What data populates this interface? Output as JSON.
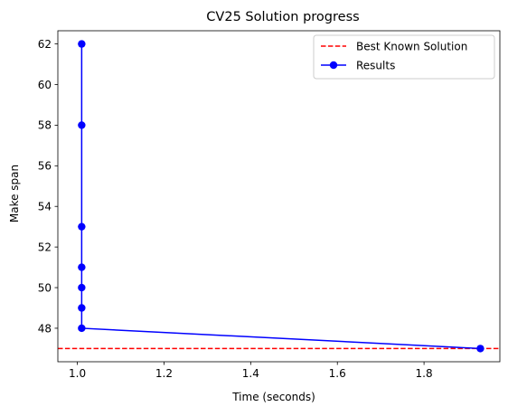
{
  "chart_data": {
    "type": "line",
    "title": "CV25 Solution progress",
    "xlabel": "Time (seconds)",
    "ylabel": "Make span",
    "xlim": [
      0.955,
      1.975
    ],
    "ylim": [
      46.35,
      62.65
    ],
    "xticks": [
      1.0,
      1.2,
      1.4,
      1.6,
      1.8
    ],
    "xtick_labels": [
      "1.0",
      "1.2",
      "1.4",
      "1.6",
      "1.8"
    ],
    "yticks": [
      48,
      50,
      52,
      54,
      56,
      58,
      60,
      62
    ],
    "ytick_labels": [
      "48",
      "50",
      "52",
      "54",
      "56",
      "58",
      "60",
      "62"
    ],
    "grid": false,
    "legend_position": "top-right",
    "reference_line": {
      "name": "Best Known Solution",
      "y": 47,
      "color": "#ff0000",
      "style": "dashed"
    },
    "series": [
      {
        "name": "Results",
        "color": "#0000ff",
        "marker": "circle",
        "x": [
          1.01,
          1.01,
          1.01,
          1.01,
          1.01,
          1.01,
          1.01,
          1.93
        ],
        "y": [
          62,
          58,
          53,
          51,
          50,
          49,
          48,
          47
        ]
      }
    ]
  }
}
